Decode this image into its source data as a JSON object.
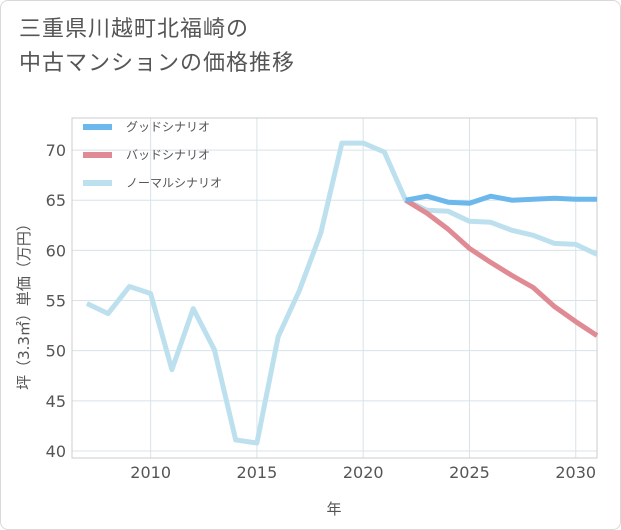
{
  "title_lines": [
    "三重県川越町北福崎の",
    "中古マンションの価格推移"
  ],
  "chart_data": {
    "type": "line",
    "xlabel": "年",
    "ylabel": "坪（3.3㎡）単価（万円）",
    "xlim": [
      2006.3,
      2031
    ],
    "ylim": [
      39.3,
      73.2
    ],
    "xticks": [
      2010,
      2015,
      2020,
      2025,
      2030
    ],
    "yticks": [
      40,
      45,
      50,
      55,
      60,
      65,
      70
    ],
    "grid": true,
    "legend_position": "top-left",
    "series": [
      {
        "name": "グッドシナリオ",
        "color": "#6cb8ec",
        "x": [
          2022,
          2023,
          2024,
          2025,
          2026,
          2027,
          2028,
          2029,
          2030,
          2031
        ],
        "y": [
          65.0,
          65.4,
          64.8,
          64.7,
          65.4,
          65.0,
          65.1,
          65.2,
          65.1,
          65.1
        ]
      },
      {
        "name": "バッドシナリオ",
        "color": "#e08a93",
        "x": [
          2022,
          2023,
          2024,
          2025,
          2026,
          2027,
          2028,
          2029,
          2030,
          2031
        ],
        "y": [
          65.0,
          63.7,
          62.1,
          60.2,
          58.8,
          57.5,
          56.3,
          54.4,
          52.9,
          51.5
        ]
      },
      {
        "name": "ノーマルシナリオ",
        "color": "#bde0ee",
        "x": [
          2007,
          2008,
          2009,
          2010,
          2011,
          2012,
          2013,
          2014,
          2015,
          2016,
          2017,
          2018,
          2019,
          2020,
          2021,
          2022,
          2023,
          2024,
          2025,
          2026,
          2027,
          2028,
          2029,
          2030,
          2031
        ],
        "y": [
          54.7,
          53.7,
          56.4,
          55.7,
          48.1,
          54.2,
          50.1,
          41.1,
          40.8,
          51.4,
          56.0,
          61.7,
          70.7,
          70.7,
          69.8,
          65.0,
          64.0,
          63.9,
          62.9,
          62.8,
          62.0,
          61.5,
          60.7,
          60.6,
          59.6
        ]
      }
    ]
  }
}
